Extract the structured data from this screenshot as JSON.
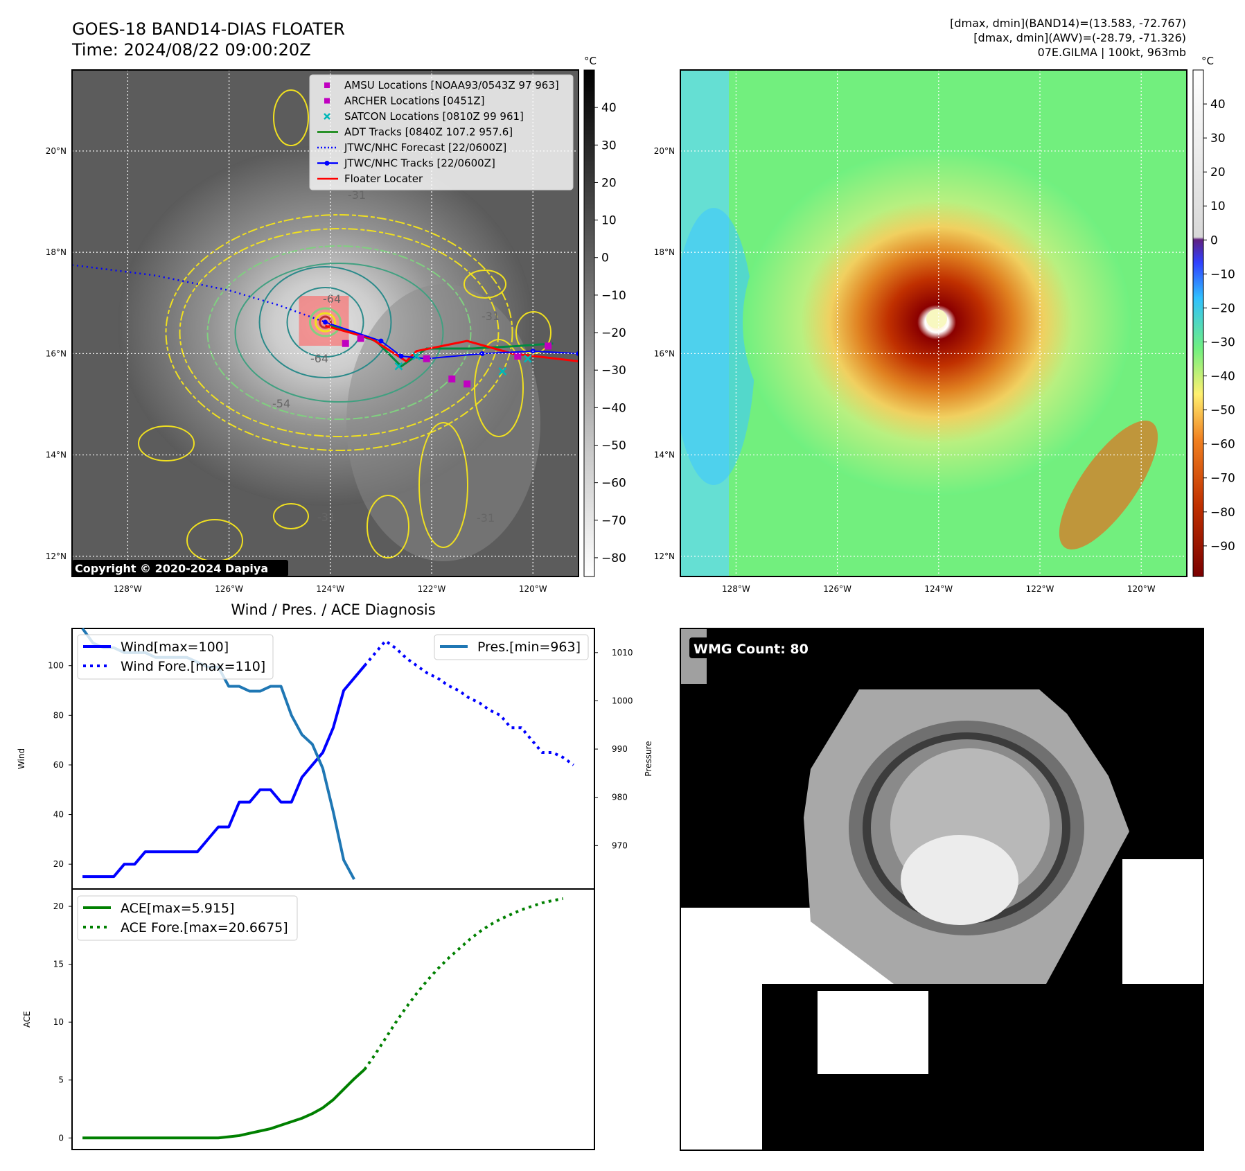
{
  "header": {
    "title_line1": "GOES-18 BAND14-DIAS FLOATER",
    "title_line2": "Time: 2024/08/22 09:00:20Z",
    "info_line1": "[dmax, dmin](BAND14)=(13.583, -72.767)",
    "info_line2": "[dmax, dmin](AWV)=(-28.79, -71.326)",
    "info_line3": "07E.GILMA | 100kt, 963mb"
  },
  "map": {
    "lat_labels": [
      "20°N",
      "18°N",
      "16°N",
      "14°N",
      "12°N"
    ],
    "lat_values": [
      20,
      18,
      16,
      14,
      12
    ],
    "lon_labels": [
      "128°W",
      "126°W",
      "124°W",
      "122°W",
      "120°W"
    ],
    "lon_values": [
      -128,
      -126,
      -124,
      -122,
      -120
    ],
    "lon_range": [
      -129.1,
      -119.1
    ],
    "lat_range": [
      11.6,
      21.6
    ],
    "copyright": "Copyright © 2020-2024 Dapiya",
    "contour_labels": [
      "-31",
      "-64",
      "-64",
      "-54",
      "-31",
      "-31",
      "-31"
    ],
    "legend": [
      {
        "label": "AMSU Locations [NOAA93/0543Z 97 963]",
        "color": "#c000c0",
        "symbol": "square"
      },
      {
        "label": "ARCHER Locations [0451Z]",
        "color": "#c000c0",
        "symbol": "square"
      },
      {
        "label": "SATCON Locations [0810Z 99 961]",
        "color": "#00b8b8",
        "symbol": "x"
      },
      {
        "label": "ADT Tracks [0840Z 107.2 957.6]",
        "color": "#008000",
        "symbol": "line"
      },
      {
        "label": "JTWC/NHC Forecast [22/0600Z]",
        "color": "#0000ff",
        "symbol": "dotted"
      },
      {
        "label": "JTWC/NHC Tracks [22/0600Z]",
        "color": "#0000ff",
        "symbol": "line-dot"
      },
      {
        "label": "Floater Locater",
        "color": "#ff0000",
        "symbol": "line"
      }
    ],
    "colorbar1": {
      "unit": "°C",
      "ticks": [
        "40",
        "30",
        "20",
        "10",
        "0",
        "−10",
        "−20",
        "−30",
        "−40",
        "−50",
        "−60",
        "−70",
        "−80"
      ],
      "tick_values": [
        40,
        30,
        20,
        10,
        0,
        -10,
        -20,
        -30,
        -40,
        -50,
        -60,
        -70,
        -80
      ],
      "range": [
        -85,
        50
      ]
    },
    "colorbar2": {
      "unit": "°C",
      "ticks": [
        "40",
        "30",
        "20",
        "10",
        "0",
        "−10",
        "−20",
        "−30",
        "−40",
        "−50",
        "−60",
        "−70",
        "−80",
        "−90"
      ],
      "tick_values": [
        40,
        30,
        20,
        10,
        0,
        -10,
        -20,
        -30,
        -40,
        -50,
        -60,
        -70,
        -80,
        -90
      ],
      "range": [
        -99,
        50
      ]
    },
    "forecast_track": [
      [
        -129.1,
        17.75
      ],
      [
        -127.5,
        17.55
      ],
      [
        -126,
        17.25
      ],
      [
        -125,
        16.95
      ],
      [
        -124.1,
        16.62
      ]
    ],
    "jtwc_track": [
      [
        -124.1,
        16.62
      ],
      [
        -123,
        16.25
      ],
      [
        -122.6,
        15.95
      ],
      [
        -122.1,
        15.9
      ],
      [
        -121,
        16.0
      ],
      [
        -120,
        16.05
      ],
      [
        -119.1,
        16.0
      ]
    ],
    "floater_track": [
      [
        -124.1,
        16.55
      ],
      [
        -123.2,
        16.3
      ],
      [
        -122.5,
        15.85
      ],
      [
        -122.3,
        16.05
      ],
      [
        -121.3,
        16.25
      ],
      [
        -120.4,
        16.0
      ],
      [
        -119.1,
        15.85
      ]
    ],
    "adt_track": [
      [
        -124.0,
        16.55
      ],
      [
        -123.1,
        16.25
      ],
      [
        -122.6,
        15.75
      ],
      [
        -122.1,
        16.1
      ],
      [
        -121.2,
        16.1
      ],
      [
        -120.3,
        16.15
      ],
      [
        -119.6,
        16.2
      ]
    ],
    "amsu_points": [
      [
        -123.4,
        16.3
      ],
      [
        -123.7,
        16.2
      ],
      [
        -121.6,
        15.5
      ],
      [
        -121.3,
        15.4
      ],
      [
        -122.1,
        15.9
      ],
      [
        -120.3,
        15.95
      ],
      [
        -119.7,
        16.15
      ]
    ],
    "satcon_points": [
      [
        -122.65,
        15.75
      ],
      [
        -122.3,
        15.95
      ],
      [
        -120.6,
        15.65
      ],
      [
        -120.1,
        15.9
      ]
    ]
  },
  "chart_data": [
    {
      "type": "line",
      "title": "Wind / Pres. / ACE Diagnosis",
      "ylabel": "Wind",
      "ylabel_right": "Pressure",
      "ylim": [
        10,
        115
      ],
      "ylim_right": [
        961,
        1015
      ],
      "yticks": [
        20,
        40,
        60,
        80,
        100
      ],
      "yticks_right": [
        970,
        980,
        990,
        1000,
        1010
      ],
      "x": [
        0,
        1,
        2,
        3,
        4,
        5,
        6,
        7,
        8,
        9,
        10,
        11,
        12,
        13,
        14,
        15,
        16,
        17,
        18,
        19,
        20,
        21,
        22,
        23,
        24,
        25,
        26,
        27,
        28,
        29,
        30,
        31,
        32,
        33,
        34,
        35,
        36,
        37,
        38,
        39,
        40,
        41,
        42,
        43,
        44,
        45,
        46,
        47,
        48
      ],
      "series": [
        {
          "name": "Wind[max=100]",
          "axis": "left",
          "color": "#0000ff",
          "style": "solid",
          "values": [
            15,
            15,
            15,
            15,
            20,
            20,
            25,
            25,
            25,
            25,
            25,
            25,
            30,
            35,
            35,
            45,
            45,
            50,
            50,
            45,
            45,
            55,
            60,
            65,
            75,
            90,
            95,
            100,
            null,
            null,
            null,
            null,
            null,
            null,
            null,
            null,
            null,
            null,
            null,
            null,
            null,
            null,
            null,
            null,
            null,
            null,
            null,
            null,
            null
          ]
        },
        {
          "name": "Wind Fore.[max=110]",
          "axis": "left",
          "color": "#0000ff",
          "style": "dotted",
          "values": [
            null,
            null,
            null,
            null,
            null,
            null,
            null,
            null,
            null,
            null,
            null,
            null,
            null,
            null,
            null,
            null,
            null,
            null,
            null,
            null,
            null,
            null,
            null,
            null,
            null,
            null,
            null,
            100,
            105,
            110,
            107,
            103,
            100,
            97,
            95,
            92,
            90,
            87,
            85,
            82,
            80,
            75,
            75,
            70,
            65,
            65,
            63,
            60,
            null
          ]
        },
        {
          "name": "Pres.[min=963]",
          "axis": "right",
          "color": "#1f77b4",
          "style": "solid",
          "values": [
            1015,
            1012,
            1011,
            1011,
            1010,
            1010,
            1010,
            1009,
            1009,
            1009,
            1009,
            1008,
            1007,
            1007,
            1003,
            1003,
            1002,
            1002,
            1003,
            1003,
            997,
            993,
            991,
            986,
            977,
            967,
            963,
            null,
            null,
            null,
            null,
            null,
            null,
            null,
            null,
            null,
            null,
            null,
            null,
            null,
            null,
            null,
            null,
            null,
            null,
            null,
            null,
            null,
            null
          ]
        }
      ],
      "legend": [
        {
          "label": "Wind[max=100]",
          "color": "#0000ff",
          "style": "solid",
          "position": "top-left"
        },
        {
          "label": "Wind Fore.[max=110]",
          "color": "#0000ff",
          "style": "dotted",
          "position": "top-left"
        },
        {
          "label": "Pres.[min=963]",
          "color": "#1f77b4",
          "style": "solid",
          "position": "top-right"
        }
      ]
    },
    {
      "type": "line",
      "ylabel": "ACE",
      "ylim": [
        -1,
        21.5
      ],
      "yticks": [
        0,
        5,
        10,
        15,
        20
      ],
      "x": [
        0,
        1,
        2,
        3,
        4,
        5,
        6,
        7,
        8,
        9,
        10,
        11,
        12,
        13,
        14,
        15,
        16,
        17,
        18,
        19,
        20,
        21,
        22,
        23,
        24,
        25,
        26,
        27,
        28,
        29,
        30,
        31,
        32,
        33,
        34,
        35,
        36,
        37,
        38,
        39,
        40,
        41,
        42,
        43,
        44,
        45,
        46,
        47,
        48
      ],
      "series": [
        {
          "name": "ACE[max=5.915]",
          "color": "#008000",
          "style": "solid",
          "values": [
            0,
            0,
            0,
            0,
            0,
            0,
            0,
            0,
            0,
            0,
            0,
            0,
            0,
            0,
            0.1,
            0.2,
            0.4,
            0.6,
            0.8,
            1.1,
            1.4,
            1.7,
            2.1,
            2.6,
            3.3,
            4.2,
            5.1,
            5.915,
            null,
            null,
            null,
            null,
            null,
            null,
            null,
            null,
            null,
            null,
            null,
            null,
            null,
            null,
            null,
            null,
            null,
            null,
            null,
            null,
            null
          ]
        },
        {
          "name": "ACE Fore.[max=20.6675]",
          "color": "#008000",
          "style": "dotted",
          "values": [
            null,
            null,
            null,
            null,
            null,
            null,
            null,
            null,
            null,
            null,
            null,
            null,
            null,
            null,
            null,
            null,
            null,
            null,
            null,
            null,
            null,
            null,
            null,
            null,
            null,
            null,
            null,
            5.915,
            7.2,
            8.6,
            10.0,
            11.3,
            12.5,
            13.6,
            14.6,
            15.5,
            16.3,
            17.1,
            17.8,
            18.4,
            18.9,
            19.3,
            19.7,
            20.0,
            20.3,
            20.5,
            20.6675,
            null,
            null
          ]
        }
      ],
      "legend": [
        {
          "label": "ACE[max=5.915]",
          "color": "#008000",
          "style": "solid",
          "position": "top-left"
        },
        {
          "label": "ACE Fore.[max=20.6675]",
          "color": "#008000",
          "style": "dotted",
          "position": "top-left"
        }
      ]
    }
  ],
  "wmg": {
    "label": "WMG Count: 80"
  }
}
